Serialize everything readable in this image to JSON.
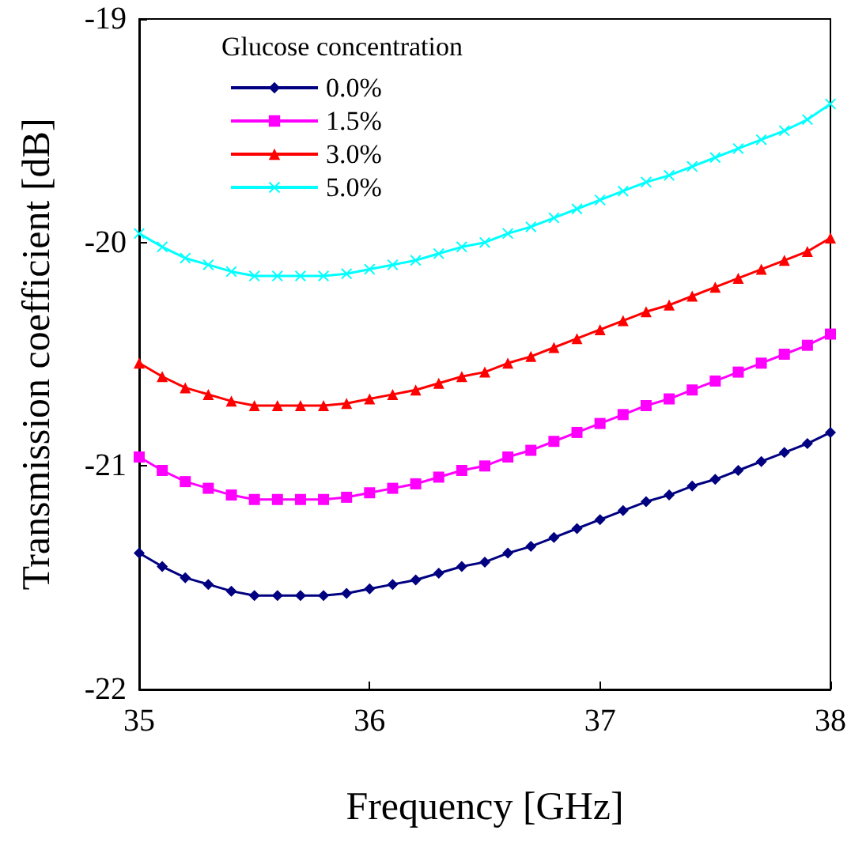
{
  "chart_data": {
    "type": "line",
    "xlabel": "Frequency [GHz]",
    "ylabel": "Transmission coefficient [dB]",
    "legend_title": "Glucose concentration",
    "legend": "top left",
    "grid": false,
    "xlim": [
      35,
      38
    ],
    "xticks": [
      35,
      36,
      37,
      38
    ],
    "ylim": [
      -22,
      -19
    ],
    "yticks": [
      -22,
      -21,
      -20,
      -19
    ],
    "x": [
      35.0,
      35.1,
      35.2,
      35.3,
      35.4,
      35.5,
      35.6,
      35.7,
      35.8,
      35.9,
      36.0,
      36.1,
      36.2,
      36.3,
      36.4,
      36.5,
      36.6,
      36.7,
      36.8,
      36.9,
      37.0,
      37.1,
      37.2,
      37.3,
      37.4,
      37.5,
      37.6,
      37.7,
      37.8,
      37.9,
      38.0
    ],
    "series": [
      {
        "name": "0.0%",
        "color": "#000080",
        "marker": "diamond",
        "values": [
          -21.39,
          -21.45,
          -21.5,
          -21.53,
          -21.56,
          -21.58,
          -21.58,
          -21.58,
          -21.58,
          -21.57,
          -21.55,
          -21.53,
          -21.51,
          -21.48,
          -21.45,
          -21.43,
          -21.39,
          -21.36,
          -21.32,
          -21.28,
          -21.24,
          -21.2,
          -21.16,
          -21.13,
          -21.09,
          -21.06,
          -21.02,
          -20.98,
          -20.94,
          -20.9,
          -20.85
        ]
      },
      {
        "name": "1.5%",
        "color": "#ff00ff",
        "marker": "square",
        "values": [
          -20.96,
          -21.02,
          -21.07,
          -21.1,
          -21.13,
          -21.15,
          -21.15,
          -21.15,
          -21.15,
          -21.14,
          -21.12,
          -21.1,
          -21.08,
          -21.05,
          -21.02,
          -21.0,
          -20.96,
          -20.93,
          -20.89,
          -20.85,
          -20.81,
          -20.77,
          -20.73,
          -20.7,
          -20.66,
          -20.62,
          -20.58,
          -20.54,
          -20.5,
          -20.46,
          -20.41
        ]
      },
      {
        "name": "3.0%",
        "color": "#ff0000",
        "marker": "triangle",
        "values": [
          -20.54,
          -20.6,
          -20.65,
          -20.68,
          -20.71,
          -20.73,
          -20.73,
          -20.73,
          -20.73,
          -20.72,
          -20.7,
          -20.68,
          -20.66,
          -20.63,
          -20.6,
          -20.58,
          -20.54,
          -20.51,
          -20.47,
          -20.43,
          -20.39,
          -20.35,
          -20.31,
          -20.28,
          -20.24,
          -20.2,
          -20.16,
          -20.12,
          -20.08,
          -20.04,
          -19.98
        ]
      },
      {
        "name": "5.0%",
        "color": "#00ffff",
        "marker": "cross",
        "values": [
          -19.96,
          -20.02,
          -20.07,
          -20.1,
          -20.13,
          -20.15,
          -20.15,
          -20.15,
          -20.15,
          -20.14,
          -20.12,
          -20.1,
          -20.08,
          -20.05,
          -20.02,
          -20.0,
          -19.96,
          -19.93,
          -19.89,
          -19.85,
          -19.81,
          -19.77,
          -19.73,
          -19.7,
          -19.66,
          -19.62,
          -19.58,
          -19.54,
          -19.5,
          -19.45,
          -19.38
        ]
      }
    ]
  }
}
